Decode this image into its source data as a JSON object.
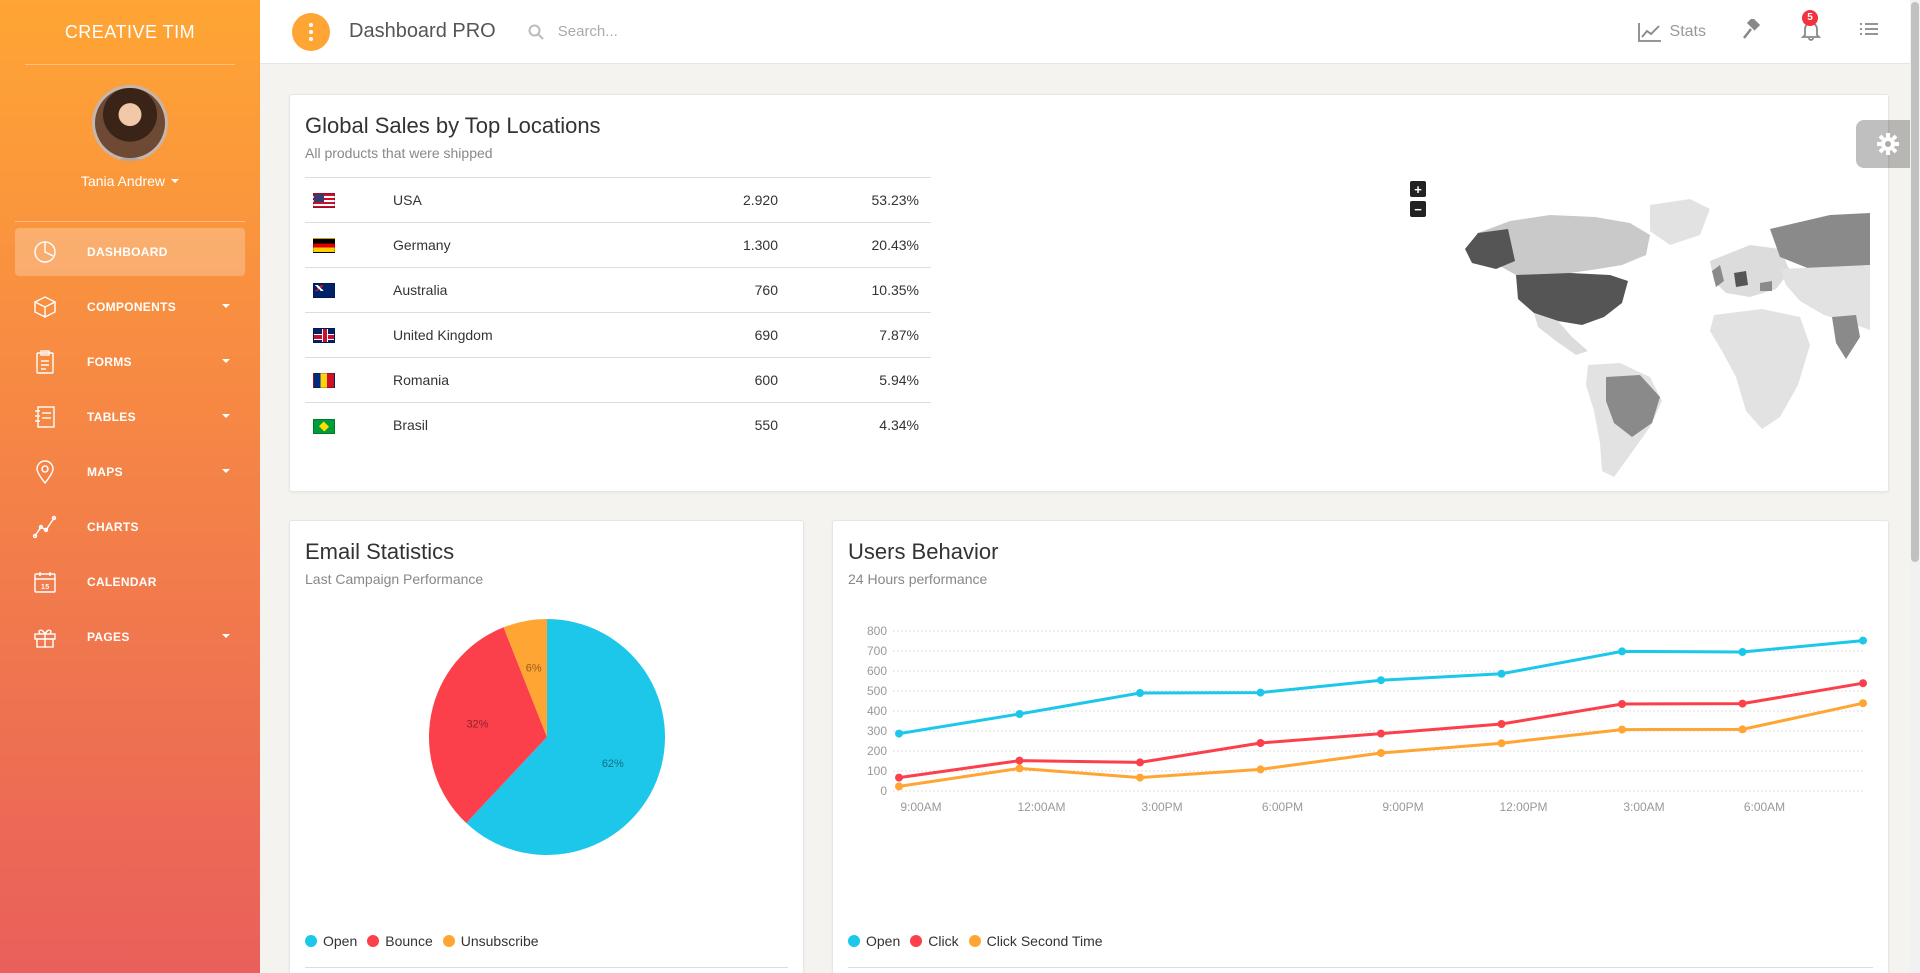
{
  "sidebar": {
    "brand": "CREATIVE TIM",
    "user_name": "Tania Andrew",
    "items": [
      {
        "label": "DASHBOARD",
        "icon": "chart-pie-icon",
        "active": true,
        "has_caret": false
      },
      {
        "label": "COMPONENTS",
        "icon": "box-icon",
        "active": false,
        "has_caret": true
      },
      {
        "label": "FORMS",
        "icon": "clipboard-icon",
        "active": false,
        "has_caret": true
      },
      {
        "label": "TABLES",
        "icon": "notes-icon",
        "active": false,
        "has_caret": true
      },
      {
        "label": "MAPS",
        "icon": "map-pin-icon",
        "active": false,
        "has_caret": true
      },
      {
        "label": "CHARTS",
        "icon": "line-chart-icon",
        "active": false,
        "has_caret": false
      },
      {
        "label": "CALENDAR",
        "icon": "calendar-icon",
        "active": false,
        "has_caret": false
      },
      {
        "label": "PAGES",
        "icon": "gift-icon",
        "active": false,
        "has_caret": true
      }
    ]
  },
  "topbar": {
    "title": "Dashboard PRO",
    "search_placeholder": "Search...",
    "stats_label": "Stats",
    "notification_count": "5"
  },
  "colors": {
    "accent": "#ffa534",
    "open": "#1dc7ea",
    "bounce": "#fb404b",
    "unsubscribe": "#ffa534"
  },
  "sales": {
    "title": "Global Sales by Top Locations",
    "subtitle": "All products that were shipped",
    "rows": [
      {
        "flag": "us",
        "country": "USA",
        "sales": "2.920",
        "percent": "53.23%"
      },
      {
        "flag": "de",
        "country": "Germany",
        "sales": "1.300",
        "percent": "20.43%"
      },
      {
        "flag": "au",
        "country": "Australia",
        "sales": "760",
        "percent": "10.35%"
      },
      {
        "flag": "gb",
        "country": "United Kingdom",
        "sales": "690",
        "percent": "7.87%"
      },
      {
        "flag": "ro",
        "country": "Romania",
        "sales": "600",
        "percent": "5.94%"
      },
      {
        "flag": "br",
        "country": "Brasil",
        "sales": "550",
        "percent": "4.34%"
      }
    ],
    "map_zoom_in": "+",
    "map_zoom_out": "−"
  },
  "email": {
    "title": "Email Statistics",
    "subtitle": "Last Campaign Performance",
    "legend": [
      "Open",
      "Bounce",
      "Unsubscribe"
    ]
  },
  "behavior": {
    "title": "Users Behavior",
    "subtitle": "24 Hours performance",
    "legend": [
      "Open",
      "Click",
      "Click Second Time"
    ]
  },
  "chart_data": [
    {
      "type": "pie",
      "labels": [
        "Open",
        "Bounce",
        "Unsubscribe"
      ],
      "values": [
        62,
        32,
        6
      ],
      "value_labels": [
        "62%",
        "32%",
        "6%"
      ],
      "colors": [
        "#1dc7ea",
        "#fb404b",
        "#ffa534"
      ]
    },
    {
      "type": "line",
      "x": [
        "9:00AM",
        "12:00AM",
        "3:00PM",
        "6:00PM",
        "9:00PM",
        "12:00PM",
        "3:00AM",
        "6:00AM",
        ""
      ],
      "x_tick_labels": [
        "9:00AM",
        "12:00AM",
        "3:00PM",
        "6:00PM",
        "9:00PM",
        "12:00PM",
        "3:00AM",
        "6:00AM"
      ],
      "ylim": [
        0,
        800
      ],
      "y_ticks": [
        "0",
        "100",
        "200",
        "300",
        "400",
        "500",
        "600",
        "700",
        "800"
      ],
      "grid": true,
      "series": [
        {
          "name": "Open",
          "color": "#1dc7ea",
          "values": [
            287,
            385,
            490,
            492,
            554,
            586,
            698,
            695,
            752
          ]
        },
        {
          "name": "Click",
          "color": "#fb404b",
          "values": [
            67,
            152,
            143,
            240,
            287,
            335,
            435,
            437,
            539
          ]
        },
        {
          "name": "Click Second Time",
          "color": "#ffa534",
          "values": [
            23,
            113,
            67,
            108,
            190,
            239,
            307,
            308,
            439
          ]
        }
      ]
    }
  ]
}
